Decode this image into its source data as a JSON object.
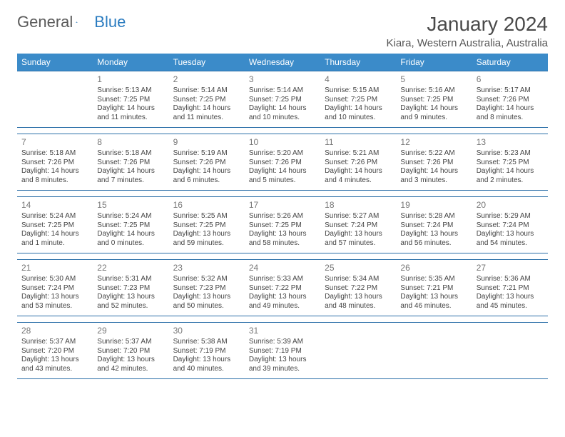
{
  "brand": {
    "part1": "General",
    "part2": "Blue"
  },
  "title": "January 2024",
  "location": "Kiara, Western Australia, Australia",
  "colors": {
    "header_bg": "#3b8bc9",
    "header_text": "#ffffff",
    "week_border": "#2b6fa8",
    "text": "#444444",
    "daynum": "#777777",
    "brand_gray": "#5a5a5a",
    "brand_blue": "#2b7cc0"
  },
  "day_labels": [
    "Sunday",
    "Monday",
    "Tuesday",
    "Wednesday",
    "Thursday",
    "Friday",
    "Saturday"
  ],
  "weeks": [
    [
      null,
      {
        "n": "1",
        "sr": "Sunrise: 5:13 AM",
        "ss": "Sunset: 7:25 PM",
        "d1": "Daylight: 14 hours",
        "d2": "and 11 minutes."
      },
      {
        "n": "2",
        "sr": "Sunrise: 5:14 AM",
        "ss": "Sunset: 7:25 PM",
        "d1": "Daylight: 14 hours",
        "d2": "and 11 minutes."
      },
      {
        "n": "3",
        "sr": "Sunrise: 5:14 AM",
        "ss": "Sunset: 7:25 PM",
        "d1": "Daylight: 14 hours",
        "d2": "and 10 minutes."
      },
      {
        "n": "4",
        "sr": "Sunrise: 5:15 AM",
        "ss": "Sunset: 7:25 PM",
        "d1": "Daylight: 14 hours",
        "d2": "and 10 minutes."
      },
      {
        "n": "5",
        "sr": "Sunrise: 5:16 AM",
        "ss": "Sunset: 7:25 PM",
        "d1": "Daylight: 14 hours",
        "d2": "and 9 minutes."
      },
      {
        "n": "6",
        "sr": "Sunrise: 5:17 AM",
        "ss": "Sunset: 7:26 PM",
        "d1": "Daylight: 14 hours",
        "d2": "and 8 minutes."
      }
    ],
    [
      {
        "n": "7",
        "sr": "Sunrise: 5:18 AM",
        "ss": "Sunset: 7:26 PM",
        "d1": "Daylight: 14 hours",
        "d2": "and 8 minutes."
      },
      {
        "n": "8",
        "sr": "Sunrise: 5:18 AM",
        "ss": "Sunset: 7:26 PM",
        "d1": "Daylight: 14 hours",
        "d2": "and 7 minutes."
      },
      {
        "n": "9",
        "sr": "Sunrise: 5:19 AM",
        "ss": "Sunset: 7:26 PM",
        "d1": "Daylight: 14 hours",
        "d2": "and 6 minutes."
      },
      {
        "n": "10",
        "sr": "Sunrise: 5:20 AM",
        "ss": "Sunset: 7:26 PM",
        "d1": "Daylight: 14 hours",
        "d2": "and 5 minutes."
      },
      {
        "n": "11",
        "sr": "Sunrise: 5:21 AM",
        "ss": "Sunset: 7:26 PM",
        "d1": "Daylight: 14 hours",
        "d2": "and 4 minutes."
      },
      {
        "n": "12",
        "sr": "Sunrise: 5:22 AM",
        "ss": "Sunset: 7:26 PM",
        "d1": "Daylight: 14 hours",
        "d2": "and 3 minutes."
      },
      {
        "n": "13",
        "sr": "Sunrise: 5:23 AM",
        "ss": "Sunset: 7:25 PM",
        "d1": "Daylight: 14 hours",
        "d2": "and 2 minutes."
      }
    ],
    [
      {
        "n": "14",
        "sr": "Sunrise: 5:24 AM",
        "ss": "Sunset: 7:25 PM",
        "d1": "Daylight: 14 hours",
        "d2": "and 1 minute."
      },
      {
        "n": "15",
        "sr": "Sunrise: 5:24 AM",
        "ss": "Sunset: 7:25 PM",
        "d1": "Daylight: 14 hours",
        "d2": "and 0 minutes."
      },
      {
        "n": "16",
        "sr": "Sunrise: 5:25 AM",
        "ss": "Sunset: 7:25 PM",
        "d1": "Daylight: 13 hours",
        "d2": "and 59 minutes."
      },
      {
        "n": "17",
        "sr": "Sunrise: 5:26 AM",
        "ss": "Sunset: 7:25 PM",
        "d1": "Daylight: 13 hours",
        "d2": "and 58 minutes."
      },
      {
        "n": "18",
        "sr": "Sunrise: 5:27 AM",
        "ss": "Sunset: 7:24 PM",
        "d1": "Daylight: 13 hours",
        "d2": "and 57 minutes."
      },
      {
        "n": "19",
        "sr": "Sunrise: 5:28 AM",
        "ss": "Sunset: 7:24 PM",
        "d1": "Daylight: 13 hours",
        "d2": "and 56 minutes."
      },
      {
        "n": "20",
        "sr": "Sunrise: 5:29 AM",
        "ss": "Sunset: 7:24 PM",
        "d1": "Daylight: 13 hours",
        "d2": "and 54 minutes."
      }
    ],
    [
      {
        "n": "21",
        "sr": "Sunrise: 5:30 AM",
        "ss": "Sunset: 7:24 PM",
        "d1": "Daylight: 13 hours",
        "d2": "and 53 minutes."
      },
      {
        "n": "22",
        "sr": "Sunrise: 5:31 AM",
        "ss": "Sunset: 7:23 PM",
        "d1": "Daylight: 13 hours",
        "d2": "and 52 minutes."
      },
      {
        "n": "23",
        "sr": "Sunrise: 5:32 AM",
        "ss": "Sunset: 7:23 PM",
        "d1": "Daylight: 13 hours",
        "d2": "and 50 minutes."
      },
      {
        "n": "24",
        "sr": "Sunrise: 5:33 AM",
        "ss": "Sunset: 7:22 PM",
        "d1": "Daylight: 13 hours",
        "d2": "and 49 minutes."
      },
      {
        "n": "25",
        "sr": "Sunrise: 5:34 AM",
        "ss": "Sunset: 7:22 PM",
        "d1": "Daylight: 13 hours",
        "d2": "and 48 minutes."
      },
      {
        "n": "26",
        "sr": "Sunrise: 5:35 AM",
        "ss": "Sunset: 7:21 PM",
        "d1": "Daylight: 13 hours",
        "d2": "and 46 minutes."
      },
      {
        "n": "27",
        "sr": "Sunrise: 5:36 AM",
        "ss": "Sunset: 7:21 PM",
        "d1": "Daylight: 13 hours",
        "d2": "and 45 minutes."
      }
    ],
    [
      {
        "n": "28",
        "sr": "Sunrise: 5:37 AM",
        "ss": "Sunset: 7:20 PM",
        "d1": "Daylight: 13 hours",
        "d2": "and 43 minutes."
      },
      {
        "n": "29",
        "sr": "Sunrise: 5:37 AM",
        "ss": "Sunset: 7:20 PM",
        "d1": "Daylight: 13 hours",
        "d2": "and 42 minutes."
      },
      {
        "n": "30",
        "sr": "Sunrise: 5:38 AM",
        "ss": "Sunset: 7:19 PM",
        "d1": "Daylight: 13 hours",
        "d2": "and 40 minutes."
      },
      {
        "n": "31",
        "sr": "Sunrise: 5:39 AM",
        "ss": "Sunset: 7:19 PM",
        "d1": "Daylight: 13 hours",
        "d2": "and 39 minutes."
      },
      null,
      null,
      null
    ]
  ]
}
